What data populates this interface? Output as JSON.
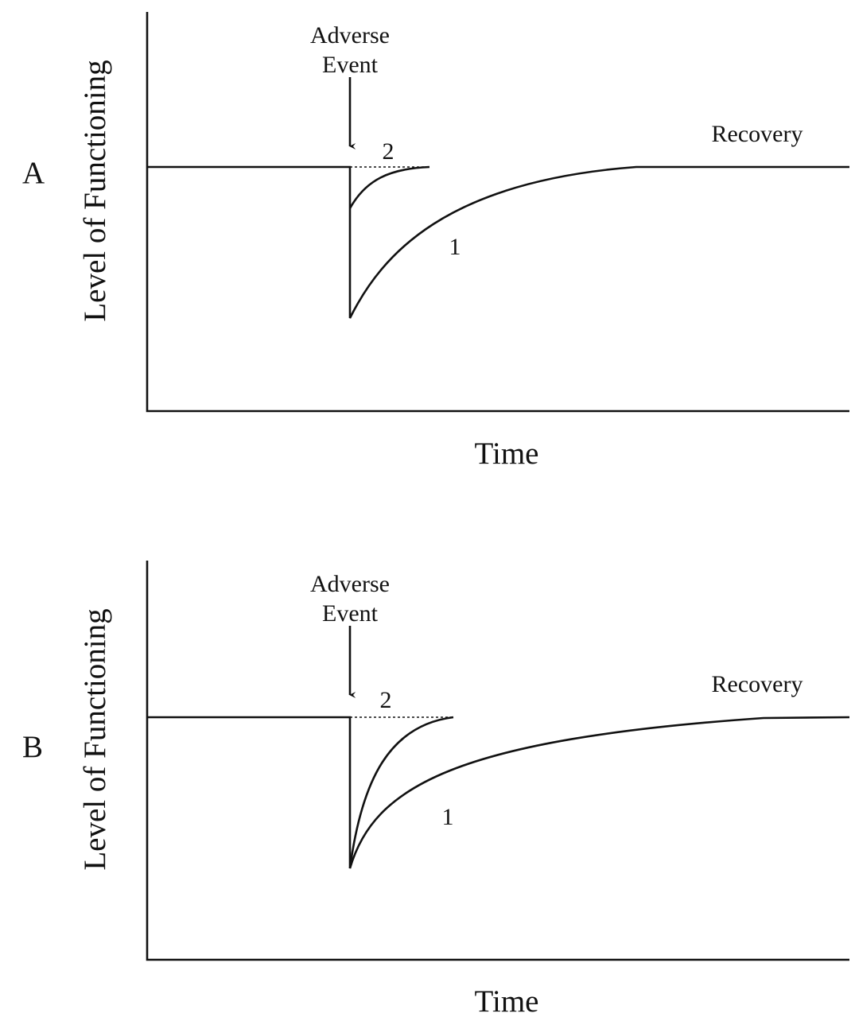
{
  "panels": [
    {
      "label": "A",
      "y_axis_label": "Level of Functioning",
      "x_axis_label": "Time",
      "event_label": [
        "Adverse",
        "Event"
      ],
      "curve_labels": [
        "1",
        "2"
      ],
      "end_label": "Recovery"
    },
    {
      "label": "B",
      "y_axis_label": "Level of Functioning",
      "x_axis_label": "Time",
      "event_label": [
        "Adverse",
        "Event"
      ],
      "curve_labels": [
        "1",
        "2"
      ],
      "end_label": "Recovery"
    }
  ]
}
